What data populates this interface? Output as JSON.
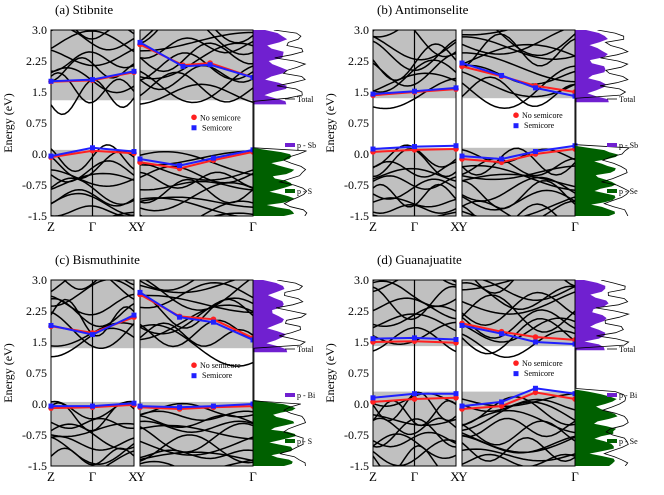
{
  "figure": {
    "ylabel": "Energy (eV)",
    "yticks": [
      "3.0",
      "2.25",
      "1.5",
      "0.75",
      "0.0",
      "-0.75",
      "-1.5"
    ],
    "colors": {
      "gap_fill": "#c0c0c0",
      "bands": "#000000",
      "no_semicore": "#ff2020",
      "semicore": "#2020ff",
      "pdos_metal": "#7020d0",
      "pdos_chalcogen": "#006000",
      "total_dos": "#000000"
    }
  },
  "chart_data": [
    {
      "type": "line",
      "title": "(a) Stibnite",
      "ylabel": "Energy (eV)",
      "ylim": [
        -1.5,
        3.0
      ],
      "kpath_left": [
        "Z",
        "Γ",
        "X"
      ],
      "kpath_right": [
        "Y",
        "Γ"
      ],
      "legend": [
        "No semicore",
        "Semicore"
      ],
      "dos_legend": [
        "Total",
        "p - Sb",
        "p - S"
      ],
      "gap_eV": [
        0.1,
        1.3
      ],
      "series": [
        {
          "name": "No semicore CBM (Z-Γ-X)",
          "x": [
            0,
            0.5,
            1
          ],
          "y": [
            1.75,
            1.78,
            1.98
          ]
        },
        {
          "name": "Semicore CBM (Z-Γ-X)",
          "x": [
            0,
            0.5,
            1
          ],
          "y": [
            1.76,
            1.8,
            2.0
          ]
        },
        {
          "name": "No semicore VBM (Z-Γ-X)",
          "x": [
            0,
            0.5,
            1
          ],
          "y": [
            -0.08,
            0.08,
            0.02
          ]
        },
        {
          "name": "Semicore VBM (Z-Γ-X)",
          "x": [
            0,
            0.5,
            1
          ],
          "y": [
            -0.05,
            0.15,
            0.06
          ]
        },
        {
          "name": "No semicore CBM (Y-Γ)",
          "x": [
            0,
            0.38,
            0.62,
            1
          ],
          "y": [
            2.65,
            2.15,
            2.2,
            1.85
          ]
        },
        {
          "name": "Semicore CBM (Y-Γ)",
          "x": [
            0,
            0.38,
            0.62,
            1
          ],
          "y": [
            2.7,
            2.12,
            2.16,
            1.85
          ]
        },
        {
          "name": "No semicore VBM (Y-Γ)",
          "x": [
            0,
            0.35,
            0.65,
            1
          ],
          "y": [
            -0.2,
            -0.35,
            -0.15,
            0.05
          ]
        },
        {
          "name": "Semicore VBM (Y-Γ)",
          "x": [
            0,
            0.35,
            0.65,
            1
          ],
          "y": [
            -0.12,
            -0.28,
            -0.1,
            0.1
          ]
        }
      ]
    },
    {
      "type": "line",
      "title": "(b) Antimonselite",
      "ylabel": "Energy (eV)",
      "ylim": [
        -1.5,
        3.0
      ],
      "kpath_left": [
        "Z",
        "Γ",
        "X"
      ],
      "kpath_right": [
        "Y",
        "Γ"
      ],
      "legend": [
        "No semicore",
        "Semicore"
      ],
      "dos_legend": [
        "Total",
        "p - Sb",
        "p - Se"
      ],
      "gap_eV": [
        0.15,
        1.35
      ],
      "series": [
        {
          "name": "No semicore CBM (Z-Γ-X)",
          "x": [
            0,
            0.5,
            1
          ],
          "y": [
            1.42,
            1.5,
            1.57
          ]
        },
        {
          "name": "Semicore CBM (Z-Γ-X)",
          "x": [
            0,
            0.5,
            1
          ],
          "y": [
            1.45,
            1.52,
            1.6
          ]
        },
        {
          "name": "No semicore VBM (Z-Γ-X)",
          "x": [
            0,
            0.5,
            1
          ],
          "y": [
            0.05,
            0.1,
            0.12
          ]
        },
        {
          "name": "Semicore VBM (Z-Γ-X)",
          "x": [
            0,
            0.5,
            1
          ],
          "y": [
            0.12,
            0.18,
            0.2
          ]
        },
        {
          "name": "No semicore CBM (Y-Γ)",
          "x": [
            0,
            0.35,
            0.65,
            1
          ],
          "y": [
            2.12,
            1.88,
            1.65,
            1.5
          ]
        },
        {
          "name": "Semicore CBM (Y-Γ)",
          "x": [
            0,
            0.35,
            0.65,
            1
          ],
          "y": [
            2.2,
            1.9,
            1.6,
            1.4
          ]
        },
        {
          "name": "No semicore VBM (Y-Γ)",
          "x": [
            0,
            0.35,
            0.65,
            1
          ],
          "y": [
            -0.12,
            -0.2,
            0.0,
            0.12
          ]
        },
        {
          "name": "Semicore VBM (Y-Γ)",
          "x": [
            0,
            0.35,
            0.65,
            1
          ],
          "y": [
            -0.05,
            -0.12,
            0.06,
            0.2
          ]
        }
      ]
    },
    {
      "type": "line",
      "title": "(c) Bismuthinite",
      "ylabel": "Energy (eV)",
      "ylim": [
        -1.5,
        3.0
      ],
      "kpath_left": [
        "Z",
        "Γ",
        "X"
      ],
      "kpath_right": [
        "Y",
        "Γ"
      ],
      "legend": [
        "No semicore",
        "Semicore"
      ],
      "dos_legend": [
        "Total",
        "p - Bi",
        "p - S"
      ],
      "gap_eV": [
        0.05,
        1.35
      ],
      "series": [
        {
          "name": "No semicore CBM (Z-Γ-X)",
          "x": [
            0,
            0.5,
            1
          ],
          "y": [
            1.88,
            1.72,
            2.1
          ]
        },
        {
          "name": "Semicore CBM (Z-Γ-X)",
          "x": [
            0,
            0.5,
            1
          ],
          "y": [
            1.9,
            1.68,
            2.15
          ]
        },
        {
          "name": "No semicore VBM (Z-Γ-X)",
          "x": [
            0,
            0.5,
            1
          ],
          "y": [
            -0.1,
            -0.08,
            -0.02
          ]
        },
        {
          "name": "Semicore VBM (Z-Γ-X)",
          "x": [
            0,
            0.5,
            1
          ],
          "y": [
            -0.05,
            -0.05,
            0.02
          ]
        },
        {
          "name": "No semicore CBM (Y-Γ)",
          "x": [
            0,
            0.35,
            0.65,
            1
          ],
          "y": [
            2.65,
            2.12,
            2.05,
            1.6
          ]
        },
        {
          "name": "Semicore CBM (Y-Γ)",
          "x": [
            0,
            0.35,
            0.65,
            1
          ],
          "y": [
            2.7,
            2.1,
            1.98,
            1.55
          ]
        },
        {
          "name": "No semicore VBM (Y-Γ)",
          "x": [
            0,
            0.35,
            0.65,
            1
          ],
          "y": [
            -0.08,
            -0.12,
            -0.08,
            -0.05
          ]
        },
        {
          "name": "Semicore VBM (Y-Γ)",
          "x": [
            0,
            0.35,
            0.65,
            1
          ],
          "y": [
            -0.05,
            -0.08,
            -0.05,
            0.0
          ]
        }
      ]
    },
    {
      "type": "line",
      "title": "(d) Guanajuatite",
      "ylabel": "Energy (eV)",
      "ylim": [
        -1.5,
        3.0
      ],
      "kpath_left": [
        "Z",
        "Γ",
        "X"
      ],
      "kpath_right": [
        "Y",
        "Γ"
      ],
      "legend": [
        "No semicore",
        "Semicore"
      ],
      "dos_legend": [
        "Total",
        "p - Bi",
        "p - Se"
      ],
      "gap_eV": [
        0.3,
        1.4
      ],
      "series": [
        {
          "name": "No semicore CBM (Z-Γ-X)",
          "x": [
            0,
            0.5,
            1
          ],
          "y": [
            1.5,
            1.52,
            1.48
          ]
        },
        {
          "name": "Semicore CBM (Z-Γ-X)",
          "x": [
            0,
            0.5,
            1
          ],
          "y": [
            1.58,
            1.6,
            1.56
          ]
        },
        {
          "name": "No semicore VBM (Z-Γ-X)",
          "x": [
            0,
            0.5,
            1
          ],
          "y": [
            0.05,
            0.12,
            0.15
          ]
        },
        {
          "name": "Semicore VBM (Z-Γ-X)",
          "x": [
            0,
            0.5,
            1
          ],
          "y": [
            0.15,
            0.25,
            0.25
          ]
        },
        {
          "name": "No semicore CBM (Y-Γ)",
          "x": [
            0,
            0.35,
            0.65,
            1
          ],
          "y": [
            1.95,
            1.75,
            1.62,
            1.55
          ]
        },
        {
          "name": "Semicore CBM (Y-Γ)",
          "x": [
            0,
            0.35,
            0.65,
            1
          ],
          "y": [
            1.9,
            1.7,
            1.5,
            1.45
          ]
        },
        {
          "name": "No semicore VBM (Y-Γ)",
          "x": [
            0,
            0.35,
            0.65,
            1
          ],
          "y": [
            -0.12,
            -0.05,
            0.28,
            0.12
          ]
        },
        {
          "name": "Semicore VBM (Y-Γ)",
          "x": [
            0,
            0.35,
            0.65,
            1
          ],
          "y": [
            -0.05,
            0.05,
            0.38,
            0.25
          ]
        }
      ]
    }
  ]
}
